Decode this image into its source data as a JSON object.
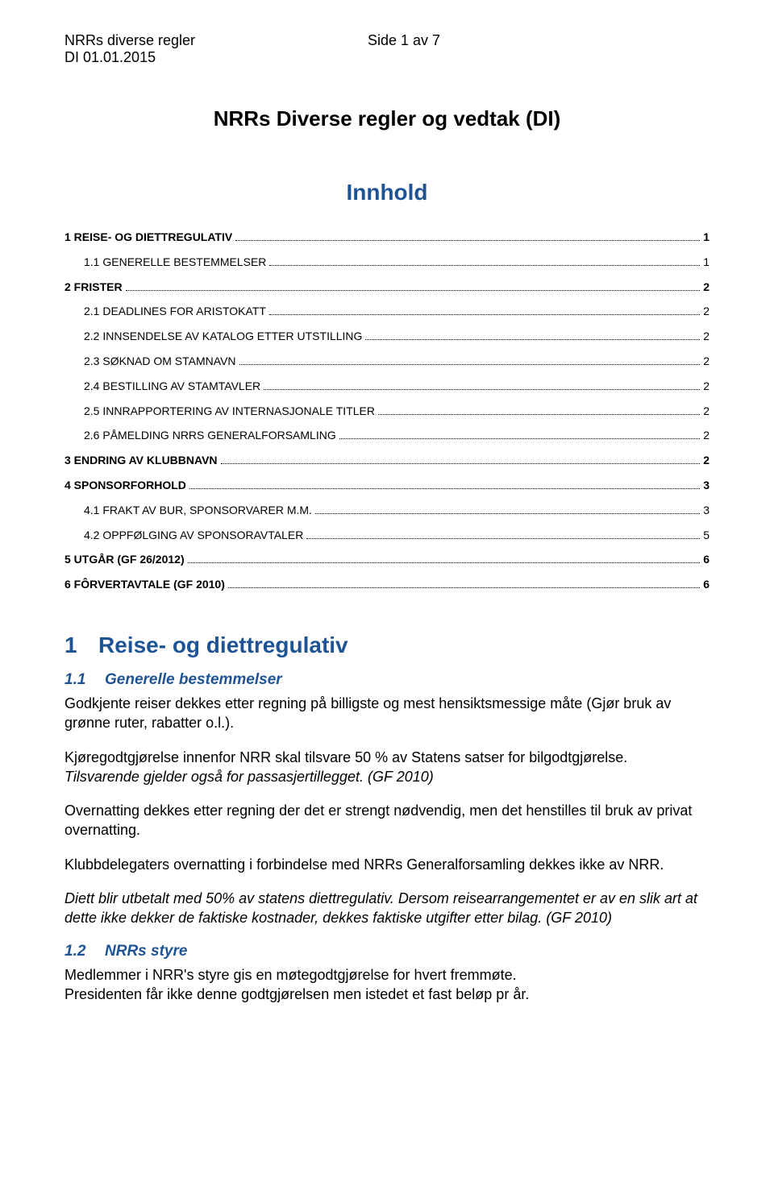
{
  "header": {
    "left1": "NRRs diverse regler",
    "left2": "DI 01.01.2015",
    "center": "Side 1 av 7"
  },
  "title": "NRRs Diverse regler og vedtak (DI)",
  "innhold_label": "Innhold",
  "toc": [
    {
      "level": 1,
      "num": "1",
      "label": "REISE- OG DIETTREGULATIV",
      "page": "1"
    },
    {
      "level": 2,
      "num": "1.1",
      "label": "GENERELLE BESTEMMELSER",
      "page": "1"
    },
    {
      "level": 1,
      "num": "2",
      "label": "FRISTER",
      "page": "2"
    },
    {
      "level": 2,
      "num": "2.1",
      "label": "DEADLINES FOR ARISTOKATT",
      "page": "2"
    },
    {
      "level": 2,
      "num": "2.2",
      "label": "INNSENDELSE AV KATALOG ETTER UTSTILLING",
      "page": "2"
    },
    {
      "level": 2,
      "num": "2.3",
      "label": "SØKNAD OM STAMNAVN",
      "page": "2"
    },
    {
      "level": 2,
      "num": "2.4",
      "label": "BESTILLING AV STAMTAVLER",
      "page": "2"
    },
    {
      "level": 2,
      "num": "2.5",
      "label": "INNRAPPORTERING AV INTERNASJONALE TITLER",
      "page": "2"
    },
    {
      "level": 2,
      "num": "2.6",
      "label": "PÅMELDING NRRS GENERALFORSAMLING",
      "page": "2"
    },
    {
      "level": 1,
      "num": "3",
      "label": "ENDRING AV KLUBBNAVN",
      "page": "2"
    },
    {
      "level": 1,
      "num": "4",
      "label": "SPONSORFORHOLD",
      "page": "3"
    },
    {
      "level": 2,
      "num": "4.1",
      "label": "FRAKT AV BUR, SPONSORVARER M.M.",
      "page": "3"
    },
    {
      "level": 2,
      "num": "4.2",
      "label": "OPPFØLGING AV SPONSORAVTALER",
      "page": "5"
    },
    {
      "level": 1,
      "num": "5",
      "label": "UTGÅR (GF 26/2012)",
      "page": "6"
    },
    {
      "level": 1,
      "num": "6",
      "label": "FÔRVERTAVTALE (GF 2010)",
      "page": "6"
    }
  ],
  "section1": {
    "num": "1",
    "heading": "Reise- og diettregulativ",
    "sub_num": "1.1",
    "sub_heading": "Generelle bestemmelser",
    "p1": "Godkjente reiser dekkes etter regning på billigste og mest hensiktsmessige måte (Gjør bruk av grønne ruter, rabatter o.l.).",
    "p2a": "Kjøregodtgjørelse innenfor NRR skal tilsvare 50 % av Statens satser for bilgodtgjørelse.",
    "p2b": "Tilsvarende gjelder også for passasjertillegget. (GF 2010)",
    "p3": "Overnatting dekkes etter regning der det er strengt nødvendig, men det henstilles til bruk av privat overnatting.",
    "p4": "Klubbdelegaters overnatting i forbindelse med NRRs Generalforsamling dekkes ikke av NRR.",
    "p5a": "Diett blir utbetalt med 50% av statens diettregulativ. Dersom reisearrangementet er av en slik art at dette ikke dekker de faktiske kostnader, dekkes faktiske utgifter etter bilag.",
    "p5b": "  (GF 2010)",
    "sub2_num": "1.2",
    "sub2_heading": "NRRs styre",
    "p6": "Medlemmer i NRR's styre gis en møtegodtgjørelse for hvert fremmøte.",
    "p7": "Presidenten får ikke denne godtgjørelsen men istedet et fast beløp pr år."
  }
}
